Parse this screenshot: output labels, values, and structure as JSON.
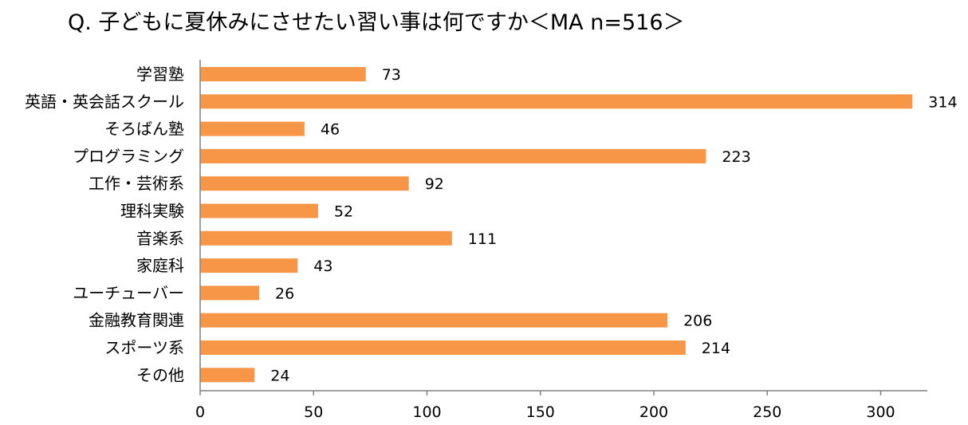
{
  "chart_data": {
    "type": "bar",
    "orientation": "horizontal",
    "title": "Q. 子どもに夏休みにさせたい習い事は何ですか＜MA n=516＞",
    "categories": [
      "学習塾",
      "英語・英会話スクール",
      "そろばん塾",
      "プログラミング",
      "工作・芸術系",
      "理科実験",
      "音楽系",
      "家庭科",
      "ユーチューバー",
      "金融教育関連",
      "スポーツ系",
      "その他"
    ],
    "values": [
      73,
      314,
      46,
      223,
      92,
      52,
      111,
      43,
      26,
      206,
      214,
      24
    ],
    "xlim": [
      0,
      320
    ],
    "xticks": [
      0,
      50,
      100,
      150,
      200,
      250,
      300
    ],
    "bar_color": "#F79646",
    "grid": false,
    "data_labels": true
  }
}
